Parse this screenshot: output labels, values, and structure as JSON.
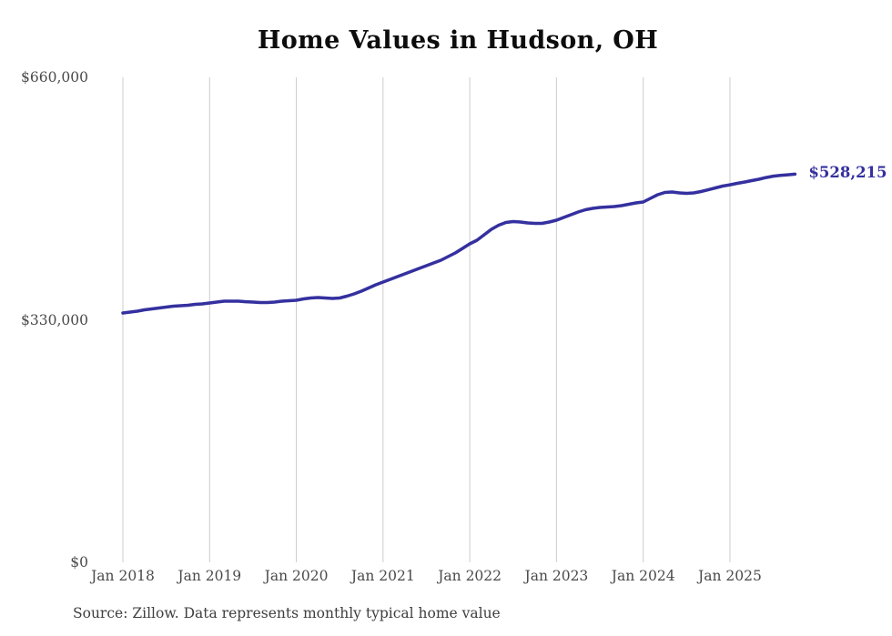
{
  "page": {
    "background": "#ffffff"
  },
  "source_note": "Source: Zillow. Data represents monthly typical home value",
  "chart_data": {
    "type": "line",
    "title": "Home Values in Hudson, OH",
    "xlabel": "",
    "ylabel": "",
    "ylim": [
      0,
      660000
    ],
    "grid": "vertical-only",
    "legend": "none",
    "line_color": "#34309f",
    "grid_color": "#cccccc",
    "tick_color": "#4a4a4c",
    "end_label": "$528,215",
    "end_value": 528215,
    "y_tick_labels": [
      "$660,000",
      "$330,000",
      "$0"
    ],
    "y_tick_values": [
      660000,
      330000,
      0
    ],
    "x_tick_labels": [
      "Jan 2018",
      "Jan 2019",
      "Jan 2020",
      "Jan 2021",
      "Jan 2022",
      "Jan 2023",
      "Jan 2024",
      "Jan 2025"
    ],
    "x_tick_month_indexes": [
      0,
      12,
      24,
      36,
      48,
      60,
      72,
      84
    ],
    "x_months": [
      "2018-01",
      "2018-02",
      "2018-03",
      "2018-04",
      "2018-05",
      "2018-06",
      "2018-07",
      "2018-08",
      "2018-09",
      "2018-10",
      "2018-11",
      "2018-12",
      "2019-01",
      "2019-02",
      "2019-03",
      "2019-04",
      "2019-05",
      "2019-06",
      "2019-07",
      "2019-08",
      "2019-09",
      "2019-10",
      "2019-11",
      "2019-12",
      "2020-01",
      "2020-02",
      "2020-03",
      "2020-04",
      "2020-05",
      "2020-06",
      "2020-07",
      "2020-08",
      "2020-09",
      "2020-10",
      "2020-11",
      "2020-12",
      "2021-01",
      "2021-02",
      "2021-03",
      "2021-04",
      "2021-05",
      "2021-06",
      "2021-07",
      "2021-08",
      "2021-09",
      "2021-10",
      "2021-11",
      "2021-12",
      "2022-01",
      "2022-02",
      "2022-03",
      "2022-04",
      "2022-05",
      "2022-06",
      "2022-07",
      "2022-08",
      "2022-09",
      "2022-10",
      "2022-11",
      "2022-12",
      "2023-01",
      "2023-02",
      "2023-03",
      "2023-04",
      "2023-05",
      "2023-06",
      "2023-07",
      "2023-08",
      "2023-09",
      "2023-10",
      "2023-11",
      "2023-12",
      "2024-01",
      "2024-02",
      "2024-03",
      "2024-04",
      "2024-05",
      "2024-06",
      "2024-07",
      "2024-08",
      "2024-09",
      "2024-10",
      "2024-11",
      "2024-12",
      "2025-01",
      "2025-02",
      "2025-03",
      "2025-04",
      "2025-05",
      "2025-06",
      "2025-07",
      "2025-08",
      "2025-09",
      "2025-10"
    ],
    "series": [
      {
        "name": "Typical home value",
        "values": [
          339300,
          340500,
          341800,
          343600,
          344900,
          346100,
          347300,
          348600,
          349200,
          349800,
          351100,
          351700,
          352900,
          354100,
          355400,
          355400,
          355400,
          354700,
          354100,
          353500,
          353500,
          354100,
          355400,
          356000,
          356600,
          358500,
          359700,
          360300,
          359700,
          359100,
          359700,
          362200,
          365300,
          369000,
          373300,
          377700,
          381400,
          385100,
          388800,
          392500,
          396200,
          400000,
          403700,
          407400,
          411100,
          416100,
          421000,
          427200,
          433400,
          438400,
          445800,
          453200,
          458800,
          462500,
          463700,
          463100,
          461900,
          461300,
          461300,
          463100,
          465600,
          469300,
          473000,
          476700,
          479800,
          481700,
          482900,
          483500,
          484200,
          485400,
          487300,
          489100,
          490400,
          495300,
          500300,
          503400,
          504000,
          502700,
          502100,
          502700,
          504600,
          507000,
          509500,
          512000,
          513800,
          515700,
          517500,
          519400,
          521300,
          523700,
          525500,
          526500,
          527400,
          528215
        ]
      }
    ]
  }
}
